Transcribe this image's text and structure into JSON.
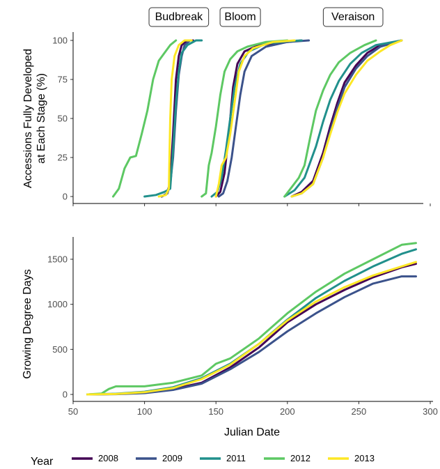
{
  "chart_data": [
    {
      "type": "line",
      "panel": "top",
      "ylabel_lines": [
        "Accessions Fully Developed",
        "at Each Stage (%)"
      ],
      "xlim": [
        50,
        300
      ],
      "ylim": [
        0,
        100
      ],
      "yticks": [
        0,
        25,
        50,
        75,
        100
      ],
      "grid": false,
      "stage_labels": [
        {
          "label": "Budbreak",
          "x": 124
        },
        {
          "label": "Bloom",
          "x": 167
        },
        {
          "label": "Veraison",
          "x": 246
        }
      ],
      "series": [
        {
          "name": "2008",
          "stages": [
            [
              [
                112,
                0
              ],
              [
                116,
                2
              ],
              [
                118,
                10
              ],
              [
                120,
                40
              ],
              [
                122,
                75
              ],
              [
                124,
                90
              ],
              [
                126,
                97
              ],
              [
                130,
                100
              ],
              [
                134,
                100
              ]
            ],
            [
              [
                150,
                0
              ],
              [
                153,
                3
              ],
              [
                156,
                15
              ],
              [
                159,
                40
              ],
              [
                162,
                70
              ],
              [
                165,
                85
              ],
              [
                170,
                93
              ],
              [
                180,
                97
              ],
              [
                200,
                99
              ],
              [
                210,
                100
              ]
            ],
            [
              [
                203,
                0
              ],
              [
                210,
                3
              ],
              [
                218,
                10
              ],
              [
                225,
                28
              ],
              [
                230,
                45
              ],
              [
                235,
                60
              ],
              [
                240,
                73
              ],
              [
                248,
                84
              ],
              [
                256,
                92
              ],
              [
                265,
                97
              ],
              [
                280,
                100
              ]
            ]
          ]
        },
        {
          "name": "2009",
          "stages": [
            [
              [
                112,
                0
              ],
              [
                116,
                2
              ],
              [
                118,
                8
              ],
              [
                120,
                25
              ],
              [
                122,
                55
              ],
              [
                124,
                78
              ],
              [
                126,
                90
              ],
              [
                128,
                97
              ],
              [
                132,
                100
              ]
            ],
            [
              [
                152,
                0
              ],
              [
                155,
                2
              ],
              [
                158,
                10
              ],
              [
                161,
                25
              ],
              [
                164,
                45
              ],
              [
                167,
                65
              ],
              [
                170,
                80
              ],
              [
                175,
                90
              ],
              [
                185,
                96
              ],
              [
                200,
                99
              ],
              [
                215,
                100
              ]
            ],
            [
              [
                203,
                0
              ],
              [
                210,
                2
              ],
              [
                218,
                8
              ],
              [
                225,
                25
              ],
              [
                230,
                42
              ],
              [
                235,
                57
              ],
              [
                240,
                70
              ],
              [
                248,
                82
              ],
              [
                256,
                90
              ],
              [
                265,
                96
              ],
              [
                280,
                100
              ]
            ]
          ]
        },
        {
          "name": "2011",
          "stages": [
            [
              [
                100,
                0
              ],
              [
                108,
                1
              ],
              [
                114,
                3
              ],
              [
                118,
                5
              ],
              [
                120,
                30
              ],
              [
                122,
                60
              ],
              [
                124,
                80
              ],
              [
                126,
                92
              ],
              [
                130,
                97
              ],
              [
                136,
                100
              ],
              [
                140,
                100
              ]
            ],
            [
              [
                147,
                0
              ],
              [
                151,
                3
              ],
              [
                154,
                12
              ],
              [
                157,
                30
              ],
              [
                160,
                50
              ],
              [
                163,
                70
              ],
              [
                167,
                85
              ],
              [
                173,
                93
              ],
              [
                185,
                98
              ],
              [
                200,
                99.5
              ],
              [
                210,
                100
              ]
            ],
            [
              [
                198,
                0
              ],
              [
                205,
                4
              ],
              [
                212,
                12
              ],
              [
                220,
                32
              ],
              [
                225,
                48
              ],
              [
                230,
                62
              ],
              [
                236,
                74
              ],
              [
                244,
                85
              ],
              [
                252,
                92
              ],
              [
                262,
                97
              ],
              [
                280,
                100
              ]
            ]
          ]
        },
        {
          "name": "2012",
          "stages": [
            [
              [
                78,
                0
              ],
              [
                82,
                5
              ],
              [
                86,
                18
              ],
              [
                90,
                25
              ],
              [
                94,
                26
              ],
              [
                98,
                40
              ],
              [
                102,
                55
              ],
              [
                106,
                75
              ],
              [
                110,
                87
              ],
              [
                114,
                92
              ],
              [
                118,
                97
              ],
              [
                122,
                100
              ]
            ],
            [
              [
                140,
                0
              ],
              [
                143,
                2
              ],
              [
                145,
                20
              ],
              [
                147,
                28
              ],
              [
                150,
                45
              ],
              [
                153,
                65
              ],
              [
                156,
                80
              ],
              [
                160,
                88
              ],
              [
                165,
                93
              ],
              [
                172,
                96
              ],
              [
                185,
                99
              ],
              [
                200,
                100
              ]
            ],
            [
              [
                198,
                0
              ],
              [
                203,
                6
              ],
              [
                208,
                12
              ],
              [
                212,
                20
              ],
              [
                216,
                38
              ],
              [
                220,
                55
              ],
              [
                225,
                68
              ],
              [
                230,
                78
              ],
              [
                236,
                86
              ],
              [
                244,
                92
              ],
              [
                254,
                97
              ],
              [
                262,
                100
              ]
            ]
          ]
        },
        {
          "name": "2013",
          "stages": [
            [
              [
                110,
                0
              ],
              [
                115,
                1
              ],
              [
                117,
                5
              ],
              [
                118,
                50
              ],
              [
                119,
                75
              ],
              [
                121,
                90
              ],
              [
                124,
                97
              ],
              [
                128,
                100
              ],
              [
                133,
                100
              ]
            ],
            [
              [
                150,
                0
              ],
              [
                152,
                8
              ],
              [
                154,
                20
              ],
              [
                157,
                25
              ],
              [
                160,
                40
              ],
              [
                163,
                60
              ],
              [
                166,
                80
              ],
              [
                170,
                90
              ],
              [
                176,
                95
              ],
              [
                190,
                99
              ],
              [
                205,
                100
              ]
            ],
            [
              [
                203,
                0
              ],
              [
                210,
                2
              ],
              [
                218,
                8
              ],
              [
                225,
                25
              ],
              [
                230,
                40
              ],
              [
                235,
                54
              ],
              [
                240,
                66
              ],
              [
                248,
                78
              ],
              [
                256,
                87
              ],
              [
                265,
                93
              ],
              [
                272,
                97
              ],
              [
                280,
                100
              ]
            ]
          ]
        }
      ]
    },
    {
      "type": "line",
      "panel": "bottom",
      "xlabel": "Julian Date",
      "ylabel": "Growing Degree Days",
      "xlim": [
        50,
        300
      ],
      "ylim": [
        0,
        1700
      ],
      "xticks": [
        50,
        100,
        150,
        200,
        250,
        300
      ],
      "yticks": [
        0,
        500,
        1000,
        1500
      ],
      "grid": false,
      "series": [
        {
          "name": "2008",
          "points": [
            [
              60,
              0
            ],
            [
              80,
              5
            ],
            [
              100,
              20
            ],
            [
              120,
              60
            ],
            [
              140,
              130
            ],
            [
              160,
              300
            ],
            [
              180,
              520
            ],
            [
              200,
              800
            ],
            [
              220,
              1000
            ],
            [
              240,
              1160
            ],
            [
              260,
              1300
            ],
            [
              280,
              1410
            ],
            [
              290,
              1450
            ]
          ]
        },
        {
          "name": "2009",
          "points": [
            [
              60,
              0
            ],
            [
              80,
              3
            ],
            [
              100,
              15
            ],
            [
              120,
              50
            ],
            [
              140,
              120
            ],
            [
              160,
              280
            ],
            [
              180,
              470
            ],
            [
              200,
              700
            ],
            [
              220,
              900
            ],
            [
              240,
              1080
            ],
            [
              260,
              1230
            ],
            [
              280,
              1310
            ],
            [
              290,
              1310
            ]
          ]
        },
        {
          "name": "2011",
          "points": [
            [
              60,
              0
            ],
            [
              80,
              8
            ],
            [
              100,
              30
            ],
            [
              120,
              80
            ],
            [
              140,
              180
            ],
            [
              160,
              340
            ],
            [
              180,
              560
            ],
            [
              200,
              830
            ],
            [
              220,
              1070
            ],
            [
              240,
              1260
            ],
            [
              260,
              1420
            ],
            [
              280,
              1560
            ],
            [
              290,
              1610
            ]
          ]
        },
        {
          "name": "2012",
          "points": [
            [
              60,
              0
            ],
            [
              70,
              10
            ],
            [
              75,
              60
            ],
            [
              80,
              90
            ],
            [
              100,
              90
            ],
            [
              110,
              110
            ],
            [
              120,
              130
            ],
            [
              140,
              210
            ],
            [
              150,
              340
            ],
            [
              160,
              400
            ],
            [
              180,
              620
            ],
            [
              200,
              900
            ],
            [
              220,
              1140
            ],
            [
              240,
              1340
            ],
            [
              260,
              1500
            ],
            [
              280,
              1660
            ],
            [
              290,
              1680
            ]
          ]
        },
        {
          "name": "2013",
          "points": [
            [
              60,
              0
            ],
            [
              80,
              5
            ],
            [
              100,
              25
            ],
            [
              120,
              70
            ],
            [
              140,
              170
            ],
            [
              160,
              330
            ],
            [
              180,
              560
            ],
            [
              200,
              820
            ],
            [
              220,
              1030
            ],
            [
              240,
              1190
            ],
            [
              260,
              1320
            ],
            [
              280,
              1420
            ],
            [
              290,
              1470
            ]
          ]
        }
      ]
    }
  ],
  "legend": {
    "title": "Year",
    "placement": "bottom",
    "items": [
      "2008",
      "2009",
      "2011",
      "2012",
      "2013"
    ]
  },
  "colors": {
    "2008": "#440154",
    "2009": "#3B528B",
    "2011": "#21908C",
    "2012": "#5DC863",
    "2013": "#FDE725"
  }
}
